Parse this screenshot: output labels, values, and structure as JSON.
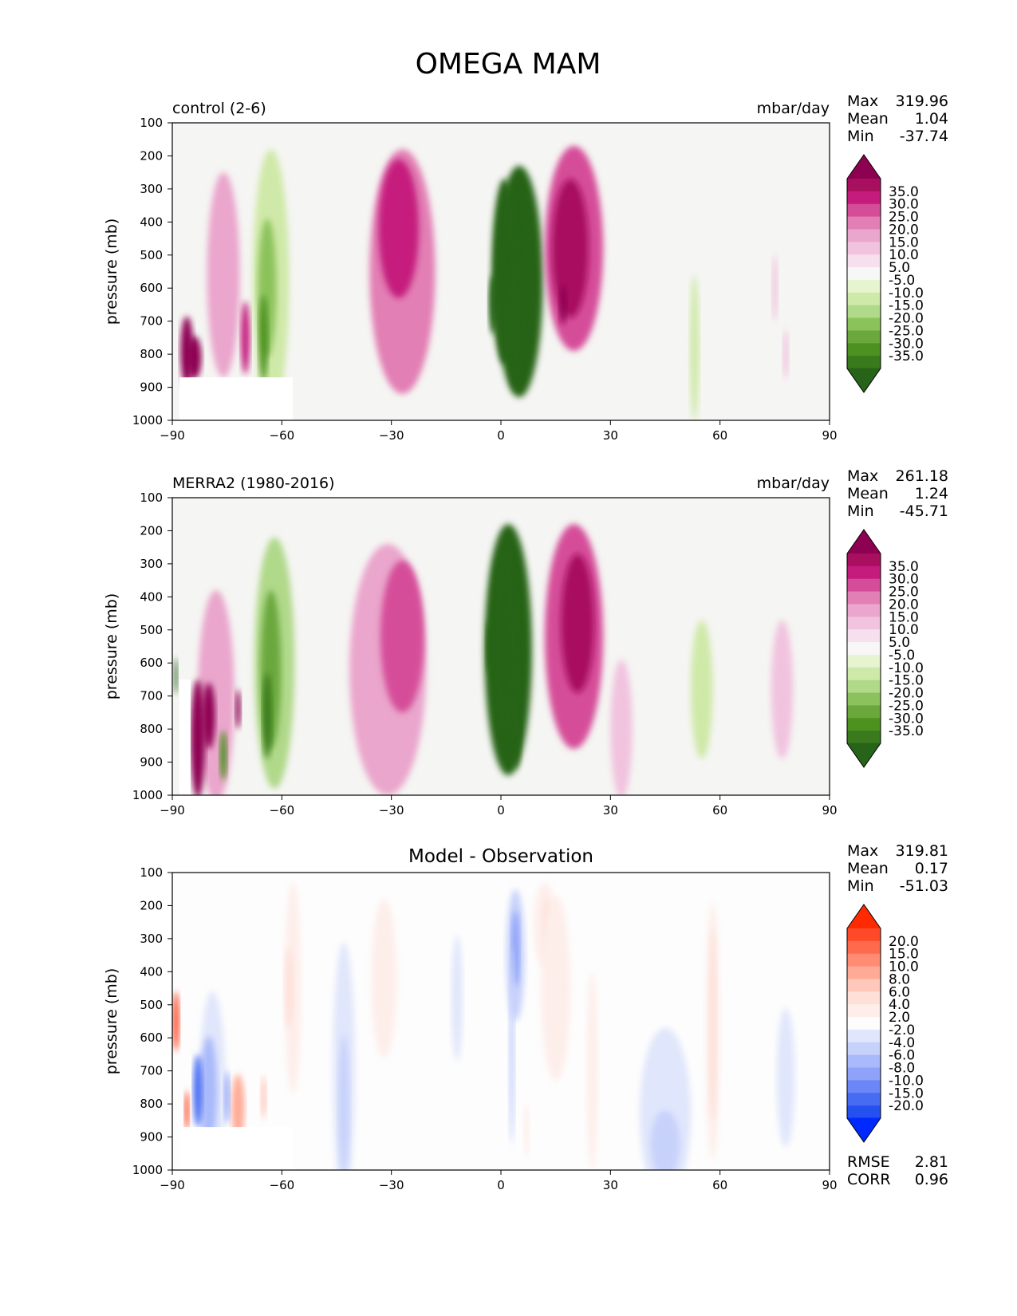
{
  "figure": {
    "title": "OMEGA MAM"
  },
  "colors": {
    "background_field": "#f5f5f3",
    "diff_background": "#fdfdfd",
    "axis": "#000000"
  },
  "chart_data": [
    {
      "type": "contour",
      "id": "test",
      "title_left": "control (2-6)",
      "title_right": "mbar/day",
      "title_center": "",
      "xlabel": "",
      "ylabel": "pressure (mb)",
      "xlim": [
        -90,
        90
      ],
      "ylim": [
        1000,
        100
      ],
      "x_ticks": [
        -90,
        -60,
        -30,
        0,
        30,
        60,
        90
      ],
      "y_ticks": [
        100,
        200,
        300,
        400,
        500,
        600,
        700,
        800,
        900,
        1000
      ],
      "stats": [
        {
          "label": "Max",
          "value": "319.96"
        },
        {
          "label": "Mean",
          "value": "1.04"
        },
        {
          "label": "Min",
          "value": "-37.74"
        }
      ],
      "extra_stats": [],
      "colorbar": {
        "labels": [
          "35.0",
          "30.0",
          "25.0",
          "20.0",
          "15.0",
          "10.0",
          "5.0",
          "-5.0",
          "-10.0",
          "-15.0",
          "-20.0",
          "-25.0",
          "-30.0",
          "-35.0"
        ],
        "colors": [
          "#8e0152",
          "#a8105f",
          "#c51b7d",
          "#d54d99",
          "#e27fb4",
          "#eaa6cc",
          "#f1c3de",
          "#f7e0ee",
          "#f7f7f7",
          "#e6f5d0",
          "#cfe9a8",
          "#b0d98a",
          "#8cc25b",
          "#6aa83d",
          "#4d9221",
          "#3a7a1c",
          "#276419"
        ]
      },
      "blobs": [
        {
          "lon": 5,
          "p": 580,
          "w": 13,
          "h": 700,
          "level": -8
        },
        {
          "lon": 1,
          "p": 550,
          "w": 7,
          "h": 560,
          "level": -12
        },
        {
          "lon": 4,
          "p": 700,
          "w": 3.5,
          "h": 420,
          "level": -14
        },
        {
          "lon": -2,
          "p": 650,
          "w": 2.5,
          "h": 180,
          "level": -13
        },
        {
          "lon": -27,
          "p": 550,
          "w": 18,
          "h": 740,
          "level": 4
        },
        {
          "lon": -28,
          "p": 420,
          "w": 11,
          "h": 420,
          "level": 6
        },
        {
          "lon": 20,
          "p": 480,
          "w": 16,
          "h": 620,
          "level": 5
        },
        {
          "lon": 19,
          "p": 480,
          "w": 10,
          "h": 420,
          "level": 7
        },
        {
          "lon": 17,
          "p": 650,
          "w": 2,
          "h": 120,
          "level": 9
        },
        {
          "lon": -63,
          "p": 580,
          "w": 10,
          "h": 800,
          "level": -2
        },
        {
          "lon": -64,
          "p": 600,
          "w": 5,
          "h": 420,
          "level": -4
        },
        {
          "lon": -65,
          "p": 750,
          "w": 2.5,
          "h": 260,
          "level": -6
        },
        {
          "lon": -76,
          "p": 560,
          "w": 9,
          "h": 620,
          "level": 3
        },
        {
          "lon": -70,
          "p": 750,
          "w": 2.5,
          "h": 220,
          "level": 6
        },
        {
          "lon": -86,
          "p": 790,
          "w": 3.5,
          "h": 210,
          "level": 12
        },
        {
          "lon": -84,
          "p": 810,
          "w": 4,
          "h": 130,
          "level": 10
        },
        {
          "lon": 53,
          "p": 780,
          "w": 2.5,
          "h": 440,
          "level": -2
        },
        {
          "lon": 75,
          "p": 600,
          "w": 1.5,
          "h": 200,
          "level": 2
        },
        {
          "lon": 78,
          "p": 800,
          "w": 1.5,
          "h": 150,
          "level": 2
        }
      ],
      "mask": {
        "lon_start": -88,
        "lon_end": -57,
        "p_start": 870
      }
    },
    {
      "type": "contour",
      "id": "reference",
      "title_left": "MERRA2 (1980-2016)",
      "title_right": "mbar/day",
      "title_center": "",
      "xlabel": "",
      "ylabel": "pressure (mb)",
      "xlim": [
        -90,
        90
      ],
      "ylim": [
        1000,
        100
      ],
      "x_ticks": [
        -90,
        -60,
        -30,
        0,
        30,
        60,
        90
      ],
      "y_ticks": [
        100,
        200,
        300,
        400,
        500,
        600,
        700,
        800,
        900,
        1000
      ],
      "stats": [
        {
          "label": "Max",
          "value": "261.18"
        },
        {
          "label": "Mean",
          "value": "1.24"
        },
        {
          "label": "Min",
          "value": "-45.71"
        }
      ],
      "extra_stats": [],
      "colorbar": {
        "labels": [
          "35.0",
          "30.0",
          "25.0",
          "20.0",
          "15.0",
          "10.0",
          "5.0",
          "-5.0",
          "-10.0",
          "-15.0",
          "-20.0",
          "-25.0",
          "-30.0",
          "-35.0"
        ],
        "colors": [
          "#8e0152",
          "#a8105f",
          "#c51b7d",
          "#d54d99",
          "#e27fb4",
          "#eaa6cc",
          "#f1c3de",
          "#f7e0ee",
          "#f7f7f7",
          "#e6f5d0",
          "#cfe9a8",
          "#b0d98a",
          "#8cc25b",
          "#6aa83d",
          "#4d9221",
          "#3a7a1c",
          "#276419"
        ]
      },
      "blobs": [
        {
          "lon": 2,
          "p": 560,
          "w": 13,
          "h": 760,
          "level": -8
        },
        {
          "lon": 1,
          "p": 540,
          "w": 7,
          "h": 560,
          "level": -11
        },
        {
          "lon": 4,
          "p": 760,
          "w": 3,
          "h": 320,
          "level": -14
        },
        {
          "lon": -3,
          "p": 550,
          "w": 2,
          "h": 160,
          "level": -13
        },
        {
          "lon": -31,
          "p": 620,
          "w": 21,
          "h": 760,
          "level": 3
        },
        {
          "lon": -27,
          "p": 520,
          "w": 12,
          "h": 460,
          "level": 5
        },
        {
          "lon": 20,
          "p": 520,
          "w": 16,
          "h": 680,
          "level": 5
        },
        {
          "lon": 21,
          "p": 480,
          "w": 9,
          "h": 420,
          "level": 7
        },
        {
          "lon": -62,
          "p": 600,
          "w": 11,
          "h": 760,
          "level": -3
        },
        {
          "lon": -63,
          "p": 620,
          "w": 5.5,
          "h": 480,
          "level": -5
        },
        {
          "lon": -64,
          "p": 760,
          "w": 2.5,
          "h": 260,
          "level": -7
        },
        {
          "lon": -78,
          "p": 700,
          "w": 10,
          "h": 640,
          "level": 3
        },
        {
          "lon": -83,
          "p": 830,
          "w": 4,
          "h": 360,
          "level": 12
        },
        {
          "lon": -80,
          "p": 760,
          "w": 3.5,
          "h": 200,
          "level": 10
        },
        {
          "lon": -72,
          "p": 740,
          "w": 1.5,
          "h": 120,
          "level": 8
        },
        {
          "lon": -76,
          "p": 880,
          "w": 2,
          "h": 150,
          "level": -6
        },
        {
          "lon": -89,
          "p": 640,
          "w": 1,
          "h": 110,
          "level": -12
        },
        {
          "lon": 55,
          "p": 680,
          "w": 6,
          "h": 420,
          "level": -2
        },
        {
          "lon": 77,
          "p": 680,
          "w": 6,
          "h": 420,
          "level": 2
        },
        {
          "lon": 33,
          "p": 800,
          "w": 6,
          "h": 420,
          "level": 2
        }
      ],
      "mask": {
        "lon_start": -88,
        "lon_end": -85,
        "p_start": 650
      }
    },
    {
      "type": "contour",
      "id": "diff",
      "title_left": "",
      "title_right": "",
      "title_center": "Model - Observation",
      "xlabel": "",
      "ylabel": "pressure (mb)",
      "xlim": [
        -90,
        90
      ],
      "ylim": [
        1000,
        100
      ],
      "x_ticks": [
        -90,
        -60,
        -30,
        0,
        30,
        60,
        90
      ],
      "y_ticks": [
        100,
        200,
        300,
        400,
        500,
        600,
        700,
        800,
        900,
        1000
      ],
      "stats": [
        {
          "label": "Max",
          "value": "319.81"
        },
        {
          "label": "Mean",
          "value": "0.17"
        },
        {
          "label": "Min",
          "value": "-51.03"
        }
      ],
      "extra_stats": [
        {
          "label": "RMSE",
          "value": "2.81"
        },
        {
          "label": "CORR",
          "value": "0.96"
        }
      ],
      "colorbar": {
        "labels": [
          "20.0",
          "15.0",
          "10.0",
          "8.0",
          "6.0",
          "4.0",
          "2.0",
          "-2.0",
          "-4.0",
          "-6.0",
          "-8.0",
          "-10.0",
          "-15.0",
          "-20.0"
        ],
        "colors": [
          "#ff2a00",
          "#ff4a2a",
          "#ff6a4c",
          "#ff8c72",
          "#ffaa96",
          "#ffc8bb",
          "#fee0d8",
          "#fdeeea",
          "#fdfdfd",
          "#e0e6fb",
          "#c7d2fb",
          "#a9b9fa",
          "#8da2f8",
          "#6b87f5",
          "#476cf3",
          "#2550f0",
          "#0029ff"
        ]
      },
      "blobs": [
        {
          "lon": -32,
          "p": 420,
          "w": 7,
          "h": 480,
          "level": 1
        },
        {
          "lon": -57,
          "p": 450,
          "w": 4.5,
          "h": 640,
          "level": 1
        },
        {
          "lon": -58,
          "p": 450,
          "w": 2.2,
          "h": 250,
          "level": 2
        },
        {
          "lon": -43,
          "p": 700,
          "w": 6,
          "h": 780,
          "level": -1
        },
        {
          "lon": -43,
          "p": 800,
          "w": 3,
          "h": 420,
          "level": -2
        },
        {
          "lon": 4,
          "p": 350,
          "w": 5,
          "h": 400,
          "level": -2
        },
        {
          "lon": 4,
          "p": 330,
          "w": 2.2,
          "h": 230,
          "level": -4
        },
        {
          "lon": 3,
          "p": 620,
          "w": 1.5,
          "h": 600,
          "level": -2
        },
        {
          "lon": 12,
          "p": 260,
          "w": 6,
          "h": 260,
          "level": 1
        },
        {
          "lon": 13,
          "p": 260,
          "w": 3,
          "h": 160,
          "level": 2
        },
        {
          "lon": 15,
          "p": 450,
          "w": 8,
          "h": 560,
          "level": 1
        },
        {
          "lon": 25,
          "p": 700,
          "w": 3,
          "h": 600,
          "level": 1
        },
        {
          "lon": 7,
          "p": 880,
          "w": 1.5,
          "h": 160,
          "level": 1
        },
        {
          "lon": -12,
          "p": 480,
          "w": 3,
          "h": 380,
          "level": -1
        },
        {
          "lon": 45,
          "p": 830,
          "w": 14,
          "h": 520,
          "level": -1
        },
        {
          "lon": 45,
          "p": 920,
          "w": 8,
          "h": 200,
          "level": -2
        },
        {
          "lon": 58,
          "p": 580,
          "w": 4,
          "h": 780,
          "level": 1
        },
        {
          "lon": 58,
          "p": 560,
          "w": 2,
          "h": 580,
          "level": 2
        },
        {
          "lon": 78,
          "p": 720,
          "w": 5,
          "h": 420,
          "level": -1
        },
        {
          "lon": -89,
          "p": 550,
          "w": 1.8,
          "h": 180,
          "level": 7
        },
        {
          "lon": -79,
          "p": 740,
          "w": 7,
          "h": 560,
          "level": -1
        },
        {
          "lon": -80,
          "p": 760,
          "w": 4.5,
          "h": 330,
          "level": -3
        },
        {
          "lon": -83,
          "p": 760,
          "w": 2.5,
          "h": 220,
          "level": -6
        },
        {
          "lon": -86,
          "p": 820,
          "w": 1.3,
          "h": 120,
          "level": 7
        },
        {
          "lon": -72,
          "p": 810,
          "w": 3.5,
          "h": 200,
          "level": 4
        },
        {
          "lon": -75,
          "p": 780,
          "w": 1.5,
          "h": 160,
          "level": -4
        },
        {
          "lon": -65,
          "p": 780,
          "w": 1.5,
          "h": 130,
          "level": 3
        }
      ],
      "mask": {
        "lon_start": -88,
        "lon_end": -57,
        "p_start": 870
      }
    }
  ]
}
